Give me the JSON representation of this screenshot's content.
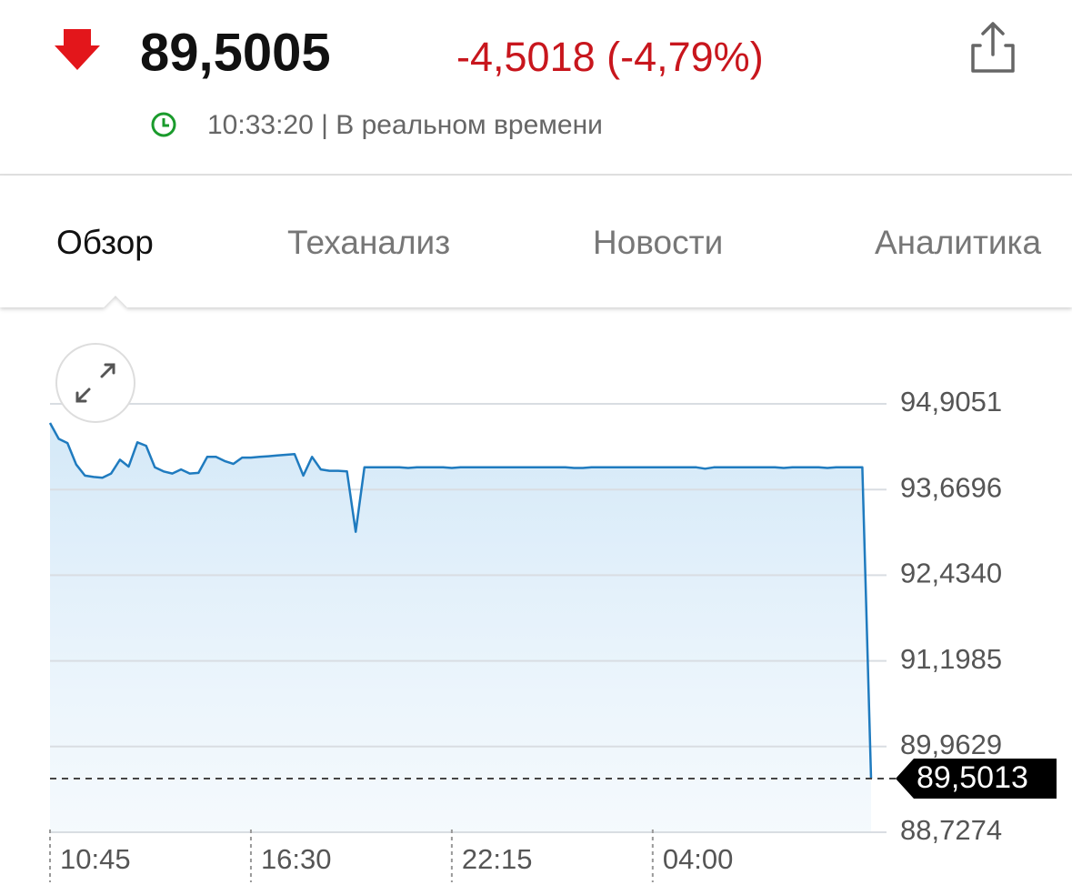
{
  "header": {
    "price": "89,5005",
    "change": "-4,5018 (-4,79%)",
    "time": "10:33:20 | В реальном времени"
  },
  "tabs": [
    "Обзор",
    "Теханализ",
    "Новости",
    "Аналитика"
  ],
  "chart_data": {
    "type": "line",
    "categories": [
      "10:45",
      null,
      null,
      null,
      null,
      null,
      null,
      null,
      null,
      null,
      null,
      null,
      null,
      null,
      null,
      null,
      null,
      null,
      null,
      null,
      null,
      null,
      null,
      "16:30",
      null,
      null,
      null,
      null,
      null,
      null,
      null,
      null,
      null,
      null,
      null,
      null,
      null,
      null,
      null,
      null,
      null,
      null,
      null,
      null,
      null,
      null,
      "22:15",
      null,
      null,
      null,
      null,
      null,
      null,
      null,
      null,
      null,
      null,
      null,
      null,
      null,
      null,
      null,
      null,
      null,
      null,
      null,
      null,
      null,
      null,
      "04:00",
      null,
      null,
      null,
      null,
      null,
      null,
      null,
      null,
      null,
      null,
      null,
      null,
      null,
      null,
      null,
      null,
      null,
      null,
      null,
      null,
      null,
      null,
      null,
      null,
      null
    ],
    "values": [
      94.63,
      94.4,
      94.34,
      94.03,
      93.87,
      93.85,
      93.84,
      93.9,
      94.1,
      94.0,
      94.35,
      94.3,
      93.99,
      93.93,
      93.9,
      93.96,
      93.9,
      93.91,
      94.14,
      94.14,
      94.08,
      94.04,
      94.13,
      94.13,
      94.14,
      94.15,
      94.16,
      94.17,
      94.18,
      93.87,
      94.14,
      93.96,
      93.94,
      93.94,
      93.93,
      93.06,
      93.99,
      93.99,
      93.99,
      93.99,
      93.99,
      93.98,
      93.99,
      93.99,
      93.99,
      93.99,
      93.98,
      93.99,
      93.99,
      93.99,
      93.99,
      93.99,
      93.99,
      93.99,
      93.99,
      93.99,
      93.99,
      93.99,
      93.99,
      93.99,
      93.98,
      93.98,
      93.99,
      93.99,
      93.99,
      93.99,
      93.99,
      93.99,
      93.99,
      93.99,
      93.99,
      93.99,
      93.99,
      93.99,
      93.99,
      93.97,
      93.99,
      93.99,
      93.99,
      93.99,
      93.99,
      93.99,
      93.99,
      93.99,
      93.98,
      93.99,
      93.99,
      93.99,
      93.99,
      93.98,
      93.99,
      93.99,
      93.99,
      93.99,
      89.5013
    ],
    "color": "#1f7bbf",
    "ylim": [
      88.7274,
      94.9051
    ],
    "yticks": [
      {
        "value": 88.7274,
        "label": "88,7274"
      },
      {
        "value": 89.9629,
        "label": "89,9629"
      },
      {
        "value": 91.1985,
        "label": "91,1985"
      },
      {
        "value": 92.434,
        "label": "92,4340"
      },
      {
        "value": 93.6696,
        "label": "93,6696"
      },
      {
        "value": 94.9051,
        "label": "94,9051"
      }
    ],
    "current": {
      "value": 89.5013,
      "label": "89,5013"
    },
    "grid": true
  }
}
